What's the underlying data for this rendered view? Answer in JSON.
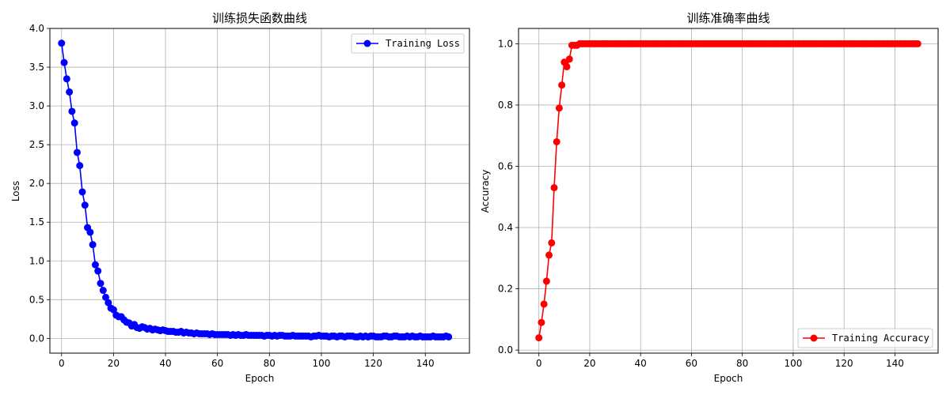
{
  "colors": {
    "loss": "#0000ff",
    "accuracy": "#ff0000",
    "grid": "#b0b0b0"
  },
  "chart_data": [
    {
      "type": "line",
      "title": "训练损失函数曲线",
      "xlabel": "Epoch",
      "ylabel": "Loss",
      "xlim": [
        -4.5,
        157
      ],
      "ylim": [
        -0.19,
        4.0
      ],
      "xticks": [
        0,
        20,
        40,
        60,
        80,
        100,
        120,
        140
      ],
      "yticks": [
        0.0,
        0.5,
        1.0,
        1.5,
        2.0,
        2.5,
        3.0,
        3.5,
        4.0
      ],
      "grid": true,
      "legend_position": "top-right",
      "series": [
        {
          "name": "Training Loss",
          "color": "#0000ff",
          "marker": "circle",
          "x": [
            0,
            1,
            2,
            3,
            4,
            5,
            6,
            7,
            8,
            9,
            10,
            11,
            12,
            13,
            14,
            15,
            16,
            17,
            18,
            19,
            20,
            21,
            22,
            23,
            24,
            25,
            26,
            27,
            28,
            29,
            30,
            31,
            32,
            33,
            34,
            35,
            36,
            37,
            38,
            39,
            40,
            41,
            42,
            43,
            44,
            45,
            46,
            47,
            48,
            49,
            50,
            51,
            52,
            53,
            54,
            55,
            56,
            57,
            58,
            59,
            60,
            61,
            62,
            63,
            64,
            65,
            66,
            67,
            68,
            69,
            70,
            71,
            72,
            73,
            74,
            75,
            76,
            77,
            78,
            79,
            80,
            81,
            82,
            83,
            84,
            85,
            86,
            87,
            88,
            89,
            90,
            91,
            92,
            93,
            94,
            95,
            96,
            97,
            98,
            99,
            100,
            101,
            102,
            103,
            104,
            105,
            106,
            107,
            108,
            109,
            110,
            111,
            112,
            113,
            114,
            115,
            116,
            117,
            118,
            119,
            120,
            121,
            122,
            123,
            124,
            125,
            126,
            127,
            128,
            129,
            130,
            131,
            132,
            133,
            134,
            135,
            136,
            137,
            138,
            139,
            140,
            141,
            142,
            143,
            144,
            145,
            146,
            147,
            148,
            149
          ],
          "values": [
            3.81,
            3.56,
            3.35,
            3.18,
            2.93,
            2.78,
            2.4,
            2.23,
            1.89,
            1.72,
            1.43,
            1.37,
            1.21,
            0.95,
            0.87,
            0.71,
            0.62,
            0.53,
            0.46,
            0.39,
            0.37,
            0.3,
            0.28,
            0.28,
            0.24,
            0.21,
            0.2,
            0.16,
            0.18,
            0.14,
            0.13,
            0.15,
            0.14,
            0.12,
            0.13,
            0.11,
            0.12,
            0.11,
            0.1,
            0.11,
            0.1,
            0.09,
            0.09,
            0.09,
            0.08,
            0.08,
            0.09,
            0.07,
            0.08,
            0.07,
            0.07,
            0.06,
            0.07,
            0.06,
            0.06,
            0.06,
            0.06,
            0.05,
            0.06,
            0.05,
            0.05,
            0.05,
            0.05,
            0.05,
            0.05,
            0.04,
            0.05,
            0.04,
            0.05,
            0.04,
            0.04,
            0.05,
            0.04,
            0.04,
            0.04,
            0.04,
            0.04,
            0.04,
            0.03,
            0.04,
            0.04,
            0.03,
            0.04,
            0.03,
            0.04,
            0.04,
            0.03,
            0.03,
            0.03,
            0.04,
            0.03,
            0.03,
            0.03,
            0.03,
            0.03,
            0.03,
            0.02,
            0.03,
            0.03,
            0.04,
            0.03,
            0.03,
            0.03,
            0.02,
            0.03,
            0.03,
            0.02,
            0.03,
            0.03,
            0.02,
            0.03,
            0.03,
            0.03,
            0.02,
            0.02,
            0.03,
            0.02,
            0.03,
            0.02,
            0.03,
            0.03,
            0.02,
            0.02,
            0.02,
            0.03,
            0.03,
            0.02,
            0.02,
            0.03,
            0.03,
            0.02,
            0.02,
            0.02,
            0.03,
            0.02,
            0.03,
            0.02,
            0.02,
            0.03,
            0.02,
            0.02,
            0.02,
            0.02,
            0.03,
            0.02,
            0.02,
            0.02,
            0.02,
            0.03,
            0.02
          ]
        }
      ]
    },
    {
      "type": "line",
      "title": "训练准确率曲线",
      "xlabel": "Epoch",
      "ylabel": "Accuracy",
      "xlim": [
        -8,
        157
      ],
      "ylim": [
        -0.01,
        1.05
      ],
      "xticks": [
        0,
        20,
        40,
        60,
        80,
        100,
        120,
        140
      ],
      "yticks": [
        0.0,
        0.2,
        0.4,
        0.6,
        0.8,
        1.0
      ],
      "grid": true,
      "legend_position": "bottom-right",
      "series": [
        {
          "name": "Training Accuracy",
          "color": "#ff0000",
          "marker": "circle",
          "x": [
            0,
            1,
            2,
            3,
            4,
            5,
            6,
            7,
            8,
            9,
            10,
            11,
            12,
            13,
            14,
            15,
            16,
            17,
            18,
            19,
            20,
            21,
            22,
            23,
            24,
            25,
            26,
            27,
            28,
            29,
            30,
            31,
            32,
            33,
            34,
            35,
            36,
            37,
            38,
            39,
            40,
            41,
            42,
            43,
            44,
            45,
            46,
            47,
            48,
            49,
            50,
            51,
            52,
            53,
            54,
            55,
            56,
            57,
            58,
            59,
            60,
            61,
            62,
            63,
            64,
            65,
            66,
            67,
            68,
            69,
            70,
            71,
            72,
            73,
            74,
            75,
            76,
            77,
            78,
            79,
            80,
            81,
            82,
            83,
            84,
            85,
            86,
            87,
            88,
            89,
            90,
            91,
            92,
            93,
            94,
            95,
            96,
            97,
            98,
            99,
            100,
            101,
            102,
            103,
            104,
            105,
            106,
            107,
            108,
            109,
            110,
            111,
            112,
            113,
            114,
            115,
            116,
            117,
            118,
            119,
            120,
            121,
            122,
            123,
            124,
            125,
            126,
            127,
            128,
            129,
            130,
            131,
            132,
            133,
            134,
            135,
            136,
            137,
            138,
            139,
            140,
            141,
            142,
            143,
            144,
            145,
            146,
            147,
            148,
            149
          ],
          "values": [
            0.04,
            0.09,
            0.15,
            0.225,
            0.31,
            0.35,
            0.53,
            0.68,
            0.79,
            0.865,
            0.94,
            0.925,
            0.95,
            0.995,
            0.995,
            0.995,
            1,
            1,
            1,
            1,
            1,
            1,
            1,
            1,
            1,
            1,
            1,
            1,
            1,
            1,
            1,
            1,
            1,
            1,
            1,
            1,
            1,
            1,
            1,
            1,
            1,
            1,
            1,
            1,
            1,
            1,
            1,
            1,
            1,
            1,
            1,
            1,
            1,
            1,
            1,
            1,
            1,
            1,
            1,
            1,
            1,
            1,
            1,
            1,
            1,
            1,
            1,
            1,
            1,
            1,
            1,
            1,
            1,
            1,
            1,
            1,
            1,
            1,
            1,
            1,
            1,
            1,
            1,
            1,
            1,
            1,
            1,
            1,
            1,
            1,
            1,
            1,
            1,
            1,
            1,
            1,
            1,
            1,
            1,
            1,
            1,
            1,
            1,
            1,
            1,
            1,
            1,
            1,
            1,
            1,
            1,
            1,
            1,
            1,
            1,
            1,
            1,
            1,
            1,
            1,
            1,
            1,
            1,
            1,
            1,
            1,
            1,
            1,
            1,
            1,
            1,
            1,
            1,
            1,
            1,
            1,
            1,
            1,
            1,
            1,
            1,
            1,
            1,
            1,
            1,
            1,
            1,
            1,
            1,
            1
          ]
        }
      ]
    }
  ]
}
